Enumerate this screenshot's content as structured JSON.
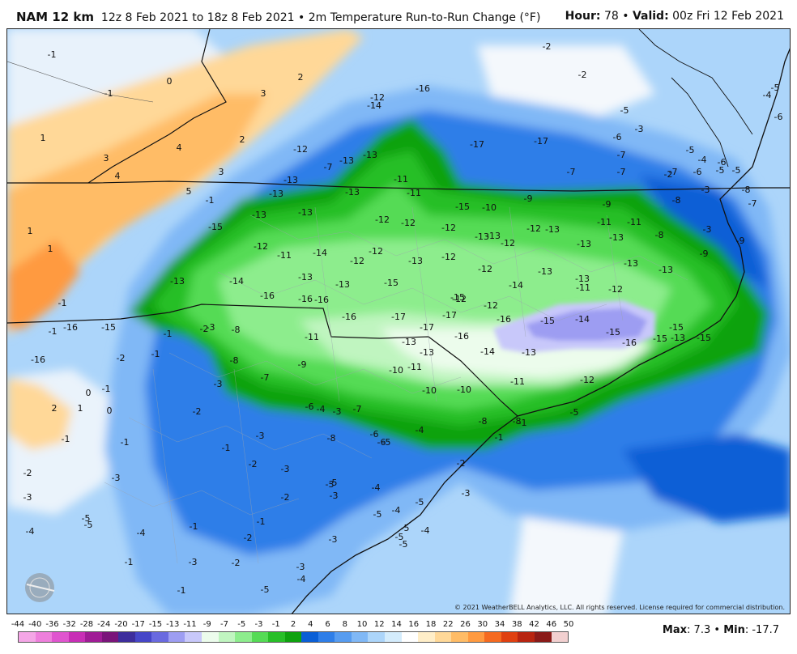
{
  "header": {
    "model": "NAM 12 km",
    "period": "12z 8 Feb 2021 to 18z 8 Feb 2021",
    "separator": "•",
    "field": "2m Temperature Run-to-Run Change (°F)",
    "hour_label": "Hour:",
    "hour_value": "78",
    "valid_label": "Valid:",
    "valid_value": "00z Fri 12 Feb 2021"
  },
  "footer": {
    "copyright": "© 2021 WeatherBELL Analytics, LLC. All rights reserved. License required for commercial distribution.",
    "logo_text": "WEATHERBELL",
    "max_label": "Max",
    "max_value": "7.3",
    "min_label": "Min",
    "min_value": "-17.7"
  },
  "legend": {
    "labels": [
      "-44",
      "-40",
      "-36",
      "-32",
      "-28",
      "-24",
      "-20",
      "-17",
      "-15",
      "-13",
      "-11",
      "-9",
      "-7",
      "-5",
      "-3",
      "-1",
      "2",
      "4",
      "6",
      "8",
      "10",
      "12",
      "14",
      "16",
      "18",
      "22",
      "26",
      "30",
      "34",
      "38",
      "42",
      "46",
      "50"
    ],
    "colors": [
      "#f4a6e6",
      "#ee7fdc",
      "#e055cf",
      "#c82fb6",
      "#a01c96",
      "#7a147a",
      "#3d2d9c",
      "#4646c8",
      "#6a6ae0",
      "#9d9df2",
      "#c8c8fa",
      "#ecfcec",
      "#c0f5c0",
      "#8ded8d",
      "#55db55",
      "#28bf28",
      "#0ea20e",
      "#0a5fd6",
      "#2f7ee8",
      "#579cf0",
      "#80b8f6",
      "#acd5fa",
      "#d4ecfc",
      "#ffffff",
      "#ffeec8",
      "#ffd898",
      "#ffbc66",
      "#ff9a40",
      "#f56a20",
      "#e04010",
      "#b82410",
      "#8a1a18",
      "#f2d0d0"
    ]
  },
  "map": {
    "values": [
      "-1",
      "0",
      "-1",
      "2",
      "3",
      "1",
      "3",
      "4",
      "2",
      "4",
      "3",
      "5",
      "-1",
      "1",
      "1",
      "-1",
      "-1",
      "-2",
      "-1",
      "0",
      "2",
      "1",
      "0",
      "-1",
      "-1",
      "-2",
      "-3",
      "-4",
      "-5",
      "-3",
      "-5",
      "-4",
      "-1",
      "-2",
      "-1",
      "-3",
      "-1",
      "-2",
      "-1",
      "-5",
      "-3",
      "-4",
      "-3",
      "-4",
      "-5",
      "-4",
      "-5",
      "-3",
      "-3",
      "-2",
      "-1",
      "-5",
      "-6",
      "-8",
      "-7",
      "-13",
      "-13",
      "-13",
      "-11",
      "-11",
      "-10",
      "-9",
      "-9",
      "-7",
      "-7",
      "-7",
      "-6",
      "-5",
      "-5",
      "-13",
      "-12",
      "-12",
      "-12",
      "-13",
      "-12",
      "-13",
      "-13",
      "-13",
      "-12",
      "-11",
      "-14",
      "-12",
      "-12",
      "-13",
      "-12",
      "-12",
      "-13",
      "-13",
      "-13",
      "-13",
      "-13",
      "-13",
      "-15",
      "-15",
      "-14",
      "-11",
      "-12",
      "-12",
      "-13",
      "-14",
      "-16",
      "-16",
      "-16",
      "-16",
      "-17",
      "-17",
      "-17",
      "-16",
      "-16",
      "-15",
      "-14",
      "-15",
      "-15",
      "-15",
      "-16",
      "-15",
      "-13",
      "-13",
      "-13",
      "-14",
      "-13",
      "-12",
      "-11",
      "-10",
      "-10",
      "-10",
      "-11",
      "-12",
      "-11",
      "-9",
      "-8",
      "-8",
      "-7",
      "-6",
      "-7",
      "-6",
      "-8",
      "-8",
      "-5",
      "-4",
      "-5",
      "-4",
      "-3",
      "-3",
      "-3",
      "-2",
      "-1",
      "-1",
      "-2",
      "-3",
      "-2",
      "-3",
      "-5",
      "-5",
      "-4",
      "-5",
      "-3",
      "-2",
      "-1",
      "-1",
      "-2",
      "-2",
      "-5",
      "-3",
      "-6",
      "-7",
      "-2",
      "-3",
      "-3",
      "-4",
      "-5",
      "-6",
      "-5",
      "-4",
      "-6",
      "-8",
      "-7",
      "-9",
      "-9",
      "-8",
      "-8",
      "-11",
      "-11",
      "-12",
      "-13",
      "-15",
      "-17",
      "-17",
      "-16",
      "-14",
      "-12",
      "-12",
      "-13",
      "-13",
      "-13",
      "-15",
      "-15",
      "-16",
      "-16",
      "-15",
      "-13",
      "-14",
      "-11",
      "-11",
      "-8",
      "-9",
      "-6",
      "-5",
      "-5",
      "-3",
      "0",
      "-2",
      "-3",
      "-4",
      "-3",
      "-3",
      "-4",
      "-3",
      "-5",
      "-5",
      "-4",
      "-3",
      "-3",
      "-1",
      "-2"
    ]
  }
}
